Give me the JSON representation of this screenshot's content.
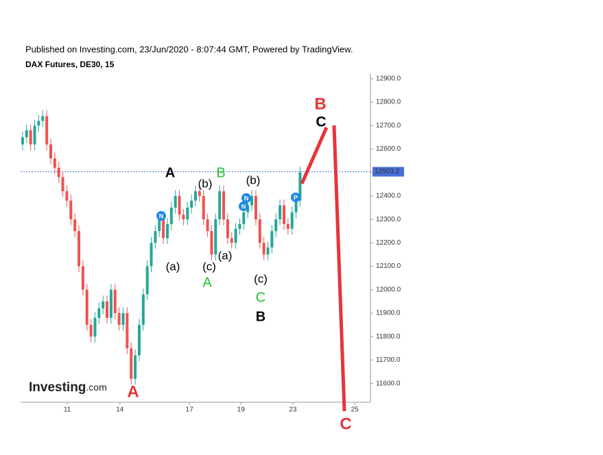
{
  "chart_data": {
    "type": "candlestick",
    "subtitle": "Published on Investing.com, 23/Jun/2020 - 8:07:44 GMT, Powered by TradingView.",
    "title": "DAX Futures, DE30, 15",
    "open": [
      12620,
      12650,
      12680,
      12620,
      12700,
      12720,
      12740,
      12620,
      12560,
      12520,
      12480,
      12420,
      12380,
      12300,
      12250,
      12100,
      12000,
      11850,
      11800,
      11880,
      11920,
      11950,
      11880,
      12000,
      11900,
      11850,
      11900,
      11750,
      11620,
      11720,
      11850,
      11980,
      12100,
      12200,
      12250,
      12300,
      12220,
      12280,
      12350,
      12400,
      12320,
      12300,
      12350,
      12380,
      12420,
      12400,
      12300,
      12250,
      12150,
      12300,
      12420,
      12300,
      12220,
      12200,
      12260,
      12280,
      12330,
      12360,
      12400,
      12300,
      12200,
      12150,
      12180,
      12250,
      12300,
      12360,
      12280,
      12260,
      12330,
      12380
    ],
    "high": [
      12675,
      12705,
      12705,
      12725,
      12745,
      12765,
      12765,
      12645,
      12585,
      12545,
      12505,
      12445,
      12405,
      12325,
      12275,
      12125,
      12025,
      11875,
      11905,
      11945,
      11975,
      11975,
      12025,
      12025,
      11925,
      11925,
      11925,
      11775,
      11745,
      11875,
      12005,
      12125,
      12225,
      12275,
      12325,
      12325,
      12305,
      12375,
      12425,
      12425,
      12345,
      12375,
      12405,
      12445,
      12445,
      12425,
      12325,
      12275,
      12325,
      12445,
      12445,
      12325,
      12245,
      12285,
      12305,
      12355,
      12385,
      12425,
      12425,
      12325,
      12225,
      12205,
      12275,
      12325,
      12385,
      12385,
      12305,
      12355,
      12405,
      12525
    ],
    "low": [
      12595,
      12625,
      12595,
      12595,
      12675,
      12695,
      12595,
      12535,
      12495,
      12455,
      12395,
      12355,
      12275,
      12225,
      12075,
      11975,
      11825,
      11775,
      11775,
      11855,
      11895,
      11855,
      11855,
      11875,
      11825,
      11825,
      11725,
      11595,
      11595,
      11695,
      11825,
      11955,
      12075,
      12175,
      12225,
      12195,
      12195,
      12255,
      12325,
      12295,
      12275,
      12275,
      12325,
      12355,
      12375,
      12275,
      12225,
      12125,
      12125,
      12275,
      12275,
      12195,
      12175,
      12175,
      12235,
      12255,
      12305,
      12335,
      12275,
      12175,
      12125,
      12125,
      12155,
      12225,
      12275,
      12255,
      12235,
      12235,
      12305,
      12355
    ],
    "close": [
      12650,
      12680,
      12620,
      12700,
      12720,
      12740,
      12620,
      12560,
      12520,
      12480,
      12420,
      12380,
      12300,
      12250,
      12100,
      12000,
      11850,
      11800,
      11880,
      11920,
      11950,
      11880,
      12000,
      11900,
      11850,
      11900,
      11750,
      11620,
      11720,
      11850,
      11980,
      12100,
      12200,
      12250,
      12300,
      12220,
      12280,
      12350,
      12400,
      12320,
      12300,
      12350,
      12380,
      12420,
      12400,
      12300,
      12250,
      12150,
      12300,
      12420,
      12300,
      12220,
      12200,
      12260,
      12280,
      12330,
      12360,
      12400,
      12300,
      12200,
      12150,
      12180,
      12250,
      12300,
      12360,
      12280,
      12260,
      12330,
      12380,
      12500
    ],
    "up_color": "#26a69a",
    "down_color": "#ef5350",
    "ylim": [
      11520,
      12920
    ],
    "yticks": [
      {
        "value": 11600,
        "label": "11600.0"
      },
      {
        "value": 11700,
        "label": "11700.0"
      },
      {
        "value": 11800,
        "label": "11800.0"
      },
      {
        "value": 11900,
        "label": "11900.0"
      },
      {
        "value": 12000,
        "label": "12000.0"
      },
      {
        "value": 12100,
        "label": "12100.0"
      },
      {
        "value": 12200,
        "label": "12200.0"
      },
      {
        "value": 12300,
        "label": "12300.0"
      },
      {
        "value": 12400,
        "label": "12400.0"
      },
      {
        "value": 12500,
        "label": "12500.0"
      },
      {
        "value": 12600,
        "label": "12600.0"
      },
      {
        "value": 12700,
        "label": "12700.0"
      },
      {
        "value": 12800,
        "label": "12800.0"
      },
      {
        "value": 12900,
        "label": "12900.0"
      }
    ],
    "xlim": [
      0,
      87
    ],
    "xticks": [
      {
        "value": 11.6,
        "label": "11"
      },
      {
        "value": 24.7,
        "label": "14"
      },
      {
        "value": 42,
        "label": "17"
      },
      {
        "value": 54.8,
        "label": "19"
      },
      {
        "value": 67.7,
        "label": "23"
      },
      {
        "value": 83.1,
        "label": "25"
      }
    ],
    "last_price": 12503.2,
    "last_price_color": "#4a6fd8",
    "annotations": [
      {
        "text": "A",
        "color": "#000000"
      },
      {
        "text": "B",
        "color": "#22c02a"
      },
      {
        "text": "(b)",
        "color": "#000000"
      },
      {
        "text": "(b)",
        "color": "#000000"
      },
      {
        "text": "(a)",
        "color": "#000000"
      },
      {
        "text": "(c)",
        "color": "#000000"
      },
      {
        "text": "(a)",
        "color": "#000000"
      },
      {
        "text": "A",
        "color": "#22c02a"
      },
      {
        "text": "(c)",
        "color": "#000000"
      },
      {
        "text": "C",
        "color": "#22c02a"
      },
      {
        "text": "B",
        "color": "#000000"
      },
      {
        "text": "A",
        "color": "#e8333a"
      },
      {
        "text": "B",
        "color": "#e8333a"
      },
      {
        "text": "C",
        "color": "#000000"
      },
      {
        "text": "C",
        "color": "#e8333a"
      }
    ],
    "markers": [
      {
        "text": "N",
        "color": "#1e88e5"
      },
      {
        "text": "N",
        "color": "#1e88e5"
      },
      {
        "text": "N",
        "color": "#1e88e5"
      },
      {
        "text": "P",
        "color": "#1e88e5"
      }
    ],
    "logo": [
      "Investing",
      ".com"
    ]
  }
}
